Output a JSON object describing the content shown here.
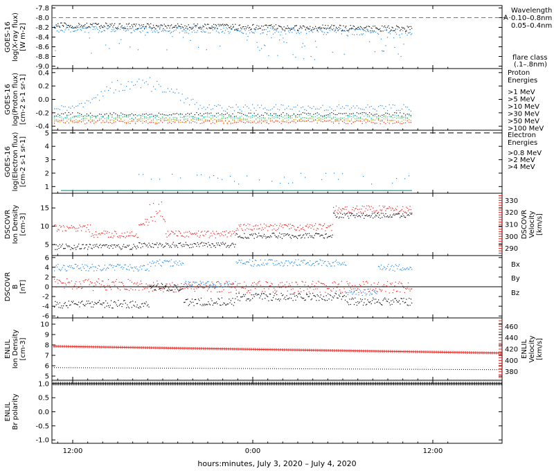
{
  "chart_data": [
    {
      "type": "scatter",
      "panel": "goes-xray",
      "ylabel": [
        "GOES-16",
        "log(X-ray flux)",
        "[W m-2]"
      ],
      "y_ticks": [
        "-7.8",
        "-8.0",
        "-8.2",
        "-8.4",
        "-8.6",
        "-8.8",
        "-9.0"
      ],
      "ylim": [
        -9.05,
        -7.75
      ],
      "legend": [
        "Wavelength",
        "0.10–0.8nm",
        "0.05–0.4nm",
        "flare class",
        "(.1–.8nm)"
      ],
      "flare_class_letter": "A",
      "flare_level": -8.0,
      "series": [
        {
          "name": "0.05–0.4nm",
          "color": "#000000",
          "base": -8.15,
          "spread": 0.06
        },
        {
          "name": "0.10–0.8nm",
          "color": "#1e88e5",
          "base": -8.22,
          "spread": 0.07
        }
      ]
    },
    {
      "type": "scatter",
      "panel": "goes-proton",
      "ylabel": [
        "GOES-16",
        "log(Proton flux)",
        "[cm-2 s-1 sr-1]"
      ],
      "y_ticks": [
        "0.4",
        "0.2",
        "0.0",
        "-0.2",
        "-0.4"
      ],
      "ylim": [
        -0.46,
        0.46
      ],
      "legend": [
        "Proton",
        "Energies",
        ">1 MeV",
        ">5 MeV",
        ">10 MeV",
        ">30 MeV",
        ">50 MeV",
        ">100 MeV"
      ],
      "series": [
        {
          "name": ">1 MeV",
          "color": "#1e88e5",
          "base": -0.12
        },
        {
          "name": ">5 MeV",
          "color": "#000000",
          "base": -0.22
        },
        {
          "name": ">10 MeV",
          "color": "#00c8c8",
          "base": -0.25
        },
        {
          "name": ">30 MeV",
          "color": "#40c040",
          "base": -0.28
        },
        {
          "name": ">50 MeV",
          "color": "#e0a000",
          "base": -0.31
        },
        {
          "name": ">100 MeV",
          "color": "#e8201c",
          "base": -0.33
        }
      ]
    },
    {
      "type": "scatter",
      "panel": "goes-electron",
      "ylabel": [
        "GOES-16",
        "log(Electron flux)",
        "[cm-2 s-1 sr-1]"
      ],
      "y_ticks": [
        "5",
        "4",
        "3",
        "2",
        "1"
      ],
      "ylim": [
        0.5,
        5.2
      ],
      "legend": [
        "Electron",
        "Energies",
        ">0.8 MeV",
        ">2 MeV",
        ">4 MeV"
      ],
      "dashed_level": 5.0,
      "series": [
        {
          "name": ">0.8 MeV",
          "color": "#000000"
        },
        {
          "name": ">2 MeV",
          "color": "#1e88e5",
          "base": 0.75
        },
        {
          "name": ">4 MeV",
          "color": "#e020e0"
        }
      ]
    },
    {
      "type": "scatter",
      "panel": "dscovr-plasma",
      "ylabel": [
        "DSCOVR",
        "Ion Density",
        "[cm-3]"
      ],
      "y_ticks": [
        "15",
        "10",
        "5"
      ],
      "ylim": [
        2,
        19
      ],
      "y2label": [
        "DSCOVR",
        "Velocity",
        "[km/s]"
      ],
      "y2_ticks": [
        "330",
        "320",
        "310",
        "300",
        "290"
      ],
      "y2lim": [
        284,
        336
      ],
      "series": [
        {
          "name": "Ion Density",
          "color": "#000000"
        },
        {
          "name": "Velocity",
          "color": "#e8201c"
        }
      ]
    },
    {
      "type": "scatter",
      "panel": "dscovr-mag",
      "ylabel": [
        "DSCOVR",
        "B",
        "[nT]"
      ],
      "y_ticks": [
        "6",
        "4",
        "2",
        "0",
        "-2",
        "-4",
        "-6"
      ],
      "ylim": [
        -6.4,
        6.4
      ],
      "legend": [
        "Bx",
        "By",
        "Bz"
      ],
      "series": [
        {
          "name": "Bx",
          "color": "#000000"
        },
        {
          "name": "By",
          "color": "#1e88e5"
        },
        {
          "name": "Bz",
          "color": "#e8201c"
        }
      ]
    },
    {
      "type": "line",
      "panel": "enlil-plasma",
      "ylabel": [
        "ENLIL",
        "Ion Density",
        "[cm-3]"
      ],
      "y_ticks": [
        "10",
        "9",
        "8",
        "7",
        "6",
        "5"
      ],
      "ylim": [
        4.6,
        10.6
      ],
      "y2label": [
        "ENLIL",
        "Velocity",
        "[km/s]"
      ],
      "y2_ticks": [
        "460",
        "440",
        "420",
        "400",
        "380"
      ],
      "y2lim": [
        365,
        475
      ],
      "series": [
        {
          "name": "Ion Density",
          "color": "#000000",
          "start": 5.85,
          "end": 5.65
        },
        {
          "name": "Velocity",
          "color": "#e8201c",
          "start": 425,
          "end": 413
        }
      ]
    },
    {
      "type": "line",
      "panel": "enlil-polarity",
      "ylabel": [
        "ENLIL",
        "Br polarity"
      ],
      "y_ticks": [
        "1.0",
        "0.5",
        "0.0",
        "-0.5",
        "-1.0"
      ],
      "ylim": [
        -1.12,
        1.12
      ],
      "series": [
        {
          "name": "Br polarity",
          "color": "#000000",
          "value": 1.0
        }
      ]
    }
  ],
  "x_axis": {
    "ticks": [
      "12:00",
      "0:00",
      "12:00"
    ],
    "label": "hours:minutes, July  3, 2020 – July  4, 2020"
  }
}
